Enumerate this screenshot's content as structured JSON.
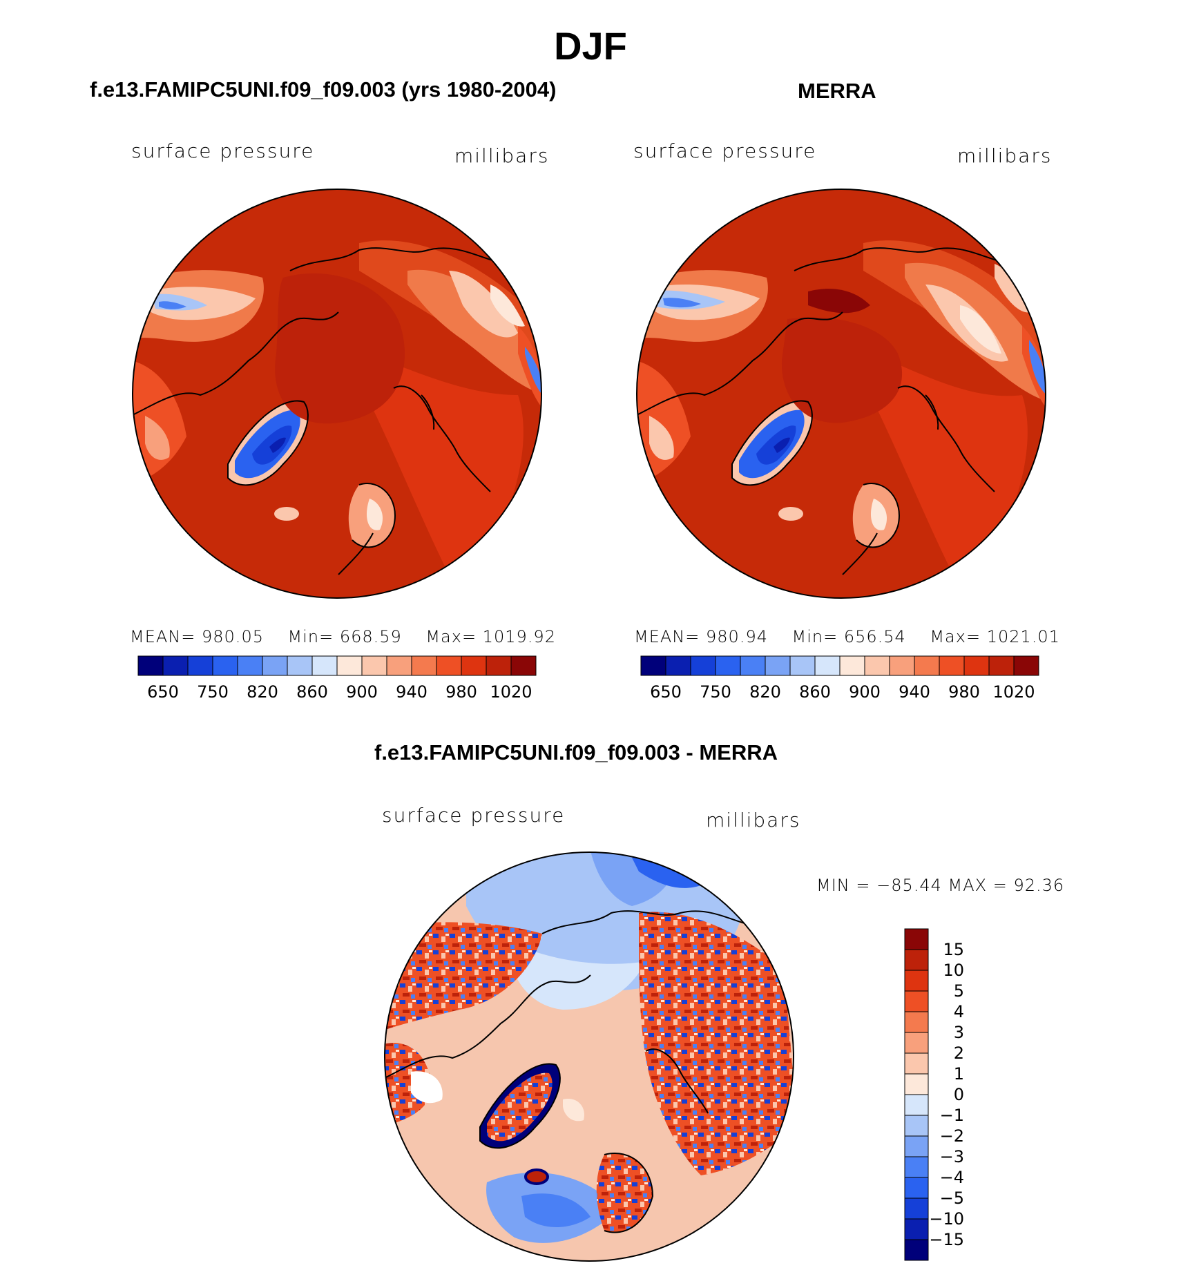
{
  "figure": {
    "title": "DJF",
    "panels": [
      {
        "title": "f.e13.FAMIPC5UNI.f09_f09.003 (yrs 1980-2004)",
        "variable": "surface pressure",
        "units": "millibars",
        "mean_label": "MEAN=",
        "mean": "980.05",
        "min_label": "Min=",
        "min": "668.59",
        "max_label": "Max=",
        "max": "1019.92"
      },
      {
        "title": "MERRA",
        "variable": "surface pressure",
        "units": "millibars",
        "mean_label": "MEAN=",
        "mean": "980.94",
        "min_label": "Min=",
        "min": "656.54",
        "max_label": "Max=",
        "max": "1021.01"
      },
      {
        "title": "f.e13.FAMIPC5UNI.f09_f09.003 - MERRA",
        "variable": "surface pressure",
        "units": "millibars",
        "minmax_text": "MIN = −85.44 MAX =   92.36"
      }
    ]
  },
  "colorbars": {
    "field": {
      "colors": [
        "#00007a",
        "#0a1fb0",
        "#1540d8",
        "#2a62f0",
        "#4a80f5",
        "#7aa3f5",
        "#a8c5f7",
        "#d6e6fb",
        "#fde8da",
        "#fbc7ad",
        "#f8a07c",
        "#f47a4e",
        "#ee5025",
        "#de3410",
        "#bd220a",
        "#8a0606"
      ],
      "tick_labels": [
        "650",
        "750",
        "820",
        "860",
        "900",
        "940",
        "980",
        "1020"
      ]
    },
    "diff": {
      "colors": [
        "#00007a",
        "#0a1fb0",
        "#1540d8",
        "#2a62f0",
        "#4a80f5",
        "#7aa3f5",
        "#a8c5f7",
        "#d6e6fb",
        "#fde8da",
        "#fbc7ad",
        "#f8a07c",
        "#f47a4e",
        "#ee5025",
        "#de3410",
        "#bd220a",
        "#8a0606"
      ],
      "tick_labels": [
        "−15",
        "−10",
        "−5",
        "−4",
        "−3",
        "−2",
        "−1",
        "0",
        "1",
        "2",
        "3",
        "4",
        "5",
        "10",
        "15"
      ]
    }
  },
  "colors": {
    "field_background": "#c62a08",
    "field_low": "#1545d6",
    "diff_background": "#f6c6ae",
    "coastline": "#000000"
  }
}
